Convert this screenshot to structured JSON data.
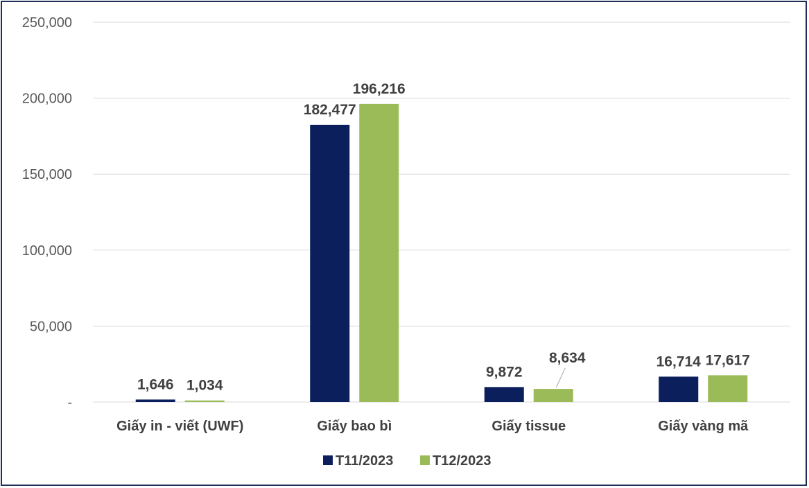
{
  "chart_data": {
    "type": "bar",
    "title": "",
    "xlabel": "",
    "ylabel": "",
    "categories": [
      "Giấy in - viết (UWF)",
      "Giấy bao bì",
      "Giấy tissue",
      "Giấy vàng mã"
    ],
    "series": [
      {
        "name": "T11/2023",
        "color": "#0b1f5c",
        "values": [
          1646,
          182477,
          9872,
          16714
        ],
        "labels": [
          "1,646",
          "182,477",
          "9,872",
          "16,714"
        ]
      },
      {
        "name": "T12/2023",
        "color": "#9bbb59",
        "values": [
          1034,
          196216,
          8634,
          17617
        ],
        "labels": [
          "1,034",
          "196,216",
          "8,634",
          "17,617"
        ]
      }
    ],
    "ylim": [
      0,
      250000
    ],
    "yticks": [
      0,
      50000,
      100000,
      150000,
      200000,
      250000
    ],
    "ytick_labels": [
      "-",
      "50,000",
      "100,000",
      "150,000",
      "200,000",
      "250,000"
    ],
    "grid": true,
    "gridline_color": "#d9d9d9",
    "legend_position": "bottom"
  }
}
